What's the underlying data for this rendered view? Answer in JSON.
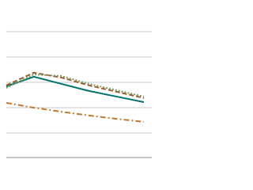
{
  "chart_data": {
    "type": "line",
    "categories": [
      null,
      null,
      null,
      null,
      null,
      null
    ],
    "series": [
      {
        "color": "#00736e",
        "dash": "",
        "values": [
          2.84,
          3.22,
          2.94,
          2.66,
          2.44,
          2.22
        ]
      },
      {
        "color": "#9c5f2a",
        "dash": "6 3",
        "values": [
          2.88,
          3.38,
          3.19,
          2.88,
          2.63,
          2.38
        ]
      },
      {
        "color": "#7f9a6c",
        "dash": "2 2",
        "values": [
          2.78,
          3.31,
          3.25,
          2.94,
          2.69,
          2.44
        ]
      },
      {
        "color": "#c27a32",
        "dash": "7 3 2 3",
        "values": [
          2.19,
          2.0,
          1.84,
          1.69,
          1.56,
          1.44
        ]
      }
    ],
    "ylim": [
      0,
      6
    ],
    "yticks": [
      1,
      2,
      3,
      4,
      5
    ],
    "grid": true
  }
}
